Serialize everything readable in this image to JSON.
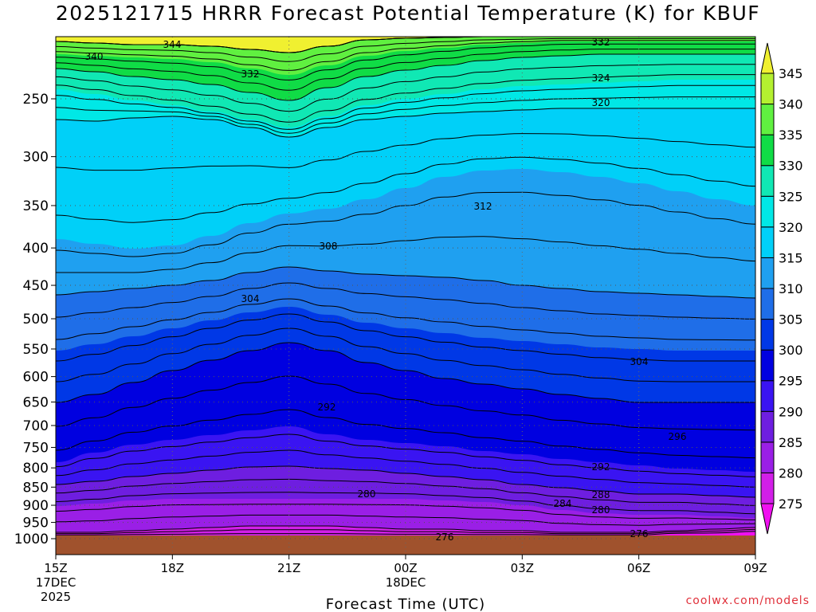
{
  "chart_data": {
    "type": "heatmap",
    "title": "2025121715 HRRR Forecast Potential Temperature (K) for KBUF",
    "xlabel": "Forecast Time (UTC)",
    "ylabel": "",
    "x_ticks": [
      {
        "label": "15Z",
        "sub": [
          "17DEC",
          "2025"
        ],
        "hour": 0
      },
      {
        "label": "18Z",
        "sub": [],
        "hour": 3
      },
      {
        "label": "21Z",
        "sub": [],
        "hour": 6
      },
      {
        "label": "00Z",
        "sub": [
          "18DEC"
        ],
        "hour": 9
      },
      {
        "label": "03Z",
        "sub": [],
        "hour": 12
      },
      {
        "label": "06Z",
        "sub": [],
        "hour": 15
      },
      {
        "label": "09Z",
        "sub": [],
        "hour": 18
      }
    ],
    "xlim": [
      0,
      18
    ],
    "ylim_hpa": [
      1000,
      200
    ],
    "y_ticks": [
      250,
      300,
      350,
      400,
      450,
      500,
      550,
      600,
      650,
      700,
      750,
      800,
      850,
      900,
      950,
      1000
    ],
    "colorbar": {
      "levels": [
        275,
        280,
        285,
        290,
        295,
        300,
        305,
        310,
        315,
        320,
        325,
        330,
        335,
        340,
        345
      ],
      "colors": [
        "#f010f0",
        "#d21fe8",
        "#9a1fe6",
        "#6e1ee0",
        "#3a14f2",
        "#0000e0",
        "#0038e6",
        "#1f6ee8",
        "#1fa0f0",
        "#00d0f8",
        "#00e8e6",
        "#10e8b4",
        "#10dc46",
        "#60f040",
        "#b4f030",
        "#f0f030"
      ]
    },
    "contour_labels": [
      "344",
      "340",
      "332",
      "332",
      "324",
      "320",
      "312",
      "308",
      "304",
      "304",
      "296",
      "292",
      "292",
      "288",
      "284",
      "280",
      "280",
      "276",
      "276"
    ],
    "ground_fill": "#a0522d"
  },
  "watermark": "coolwx.com/models"
}
